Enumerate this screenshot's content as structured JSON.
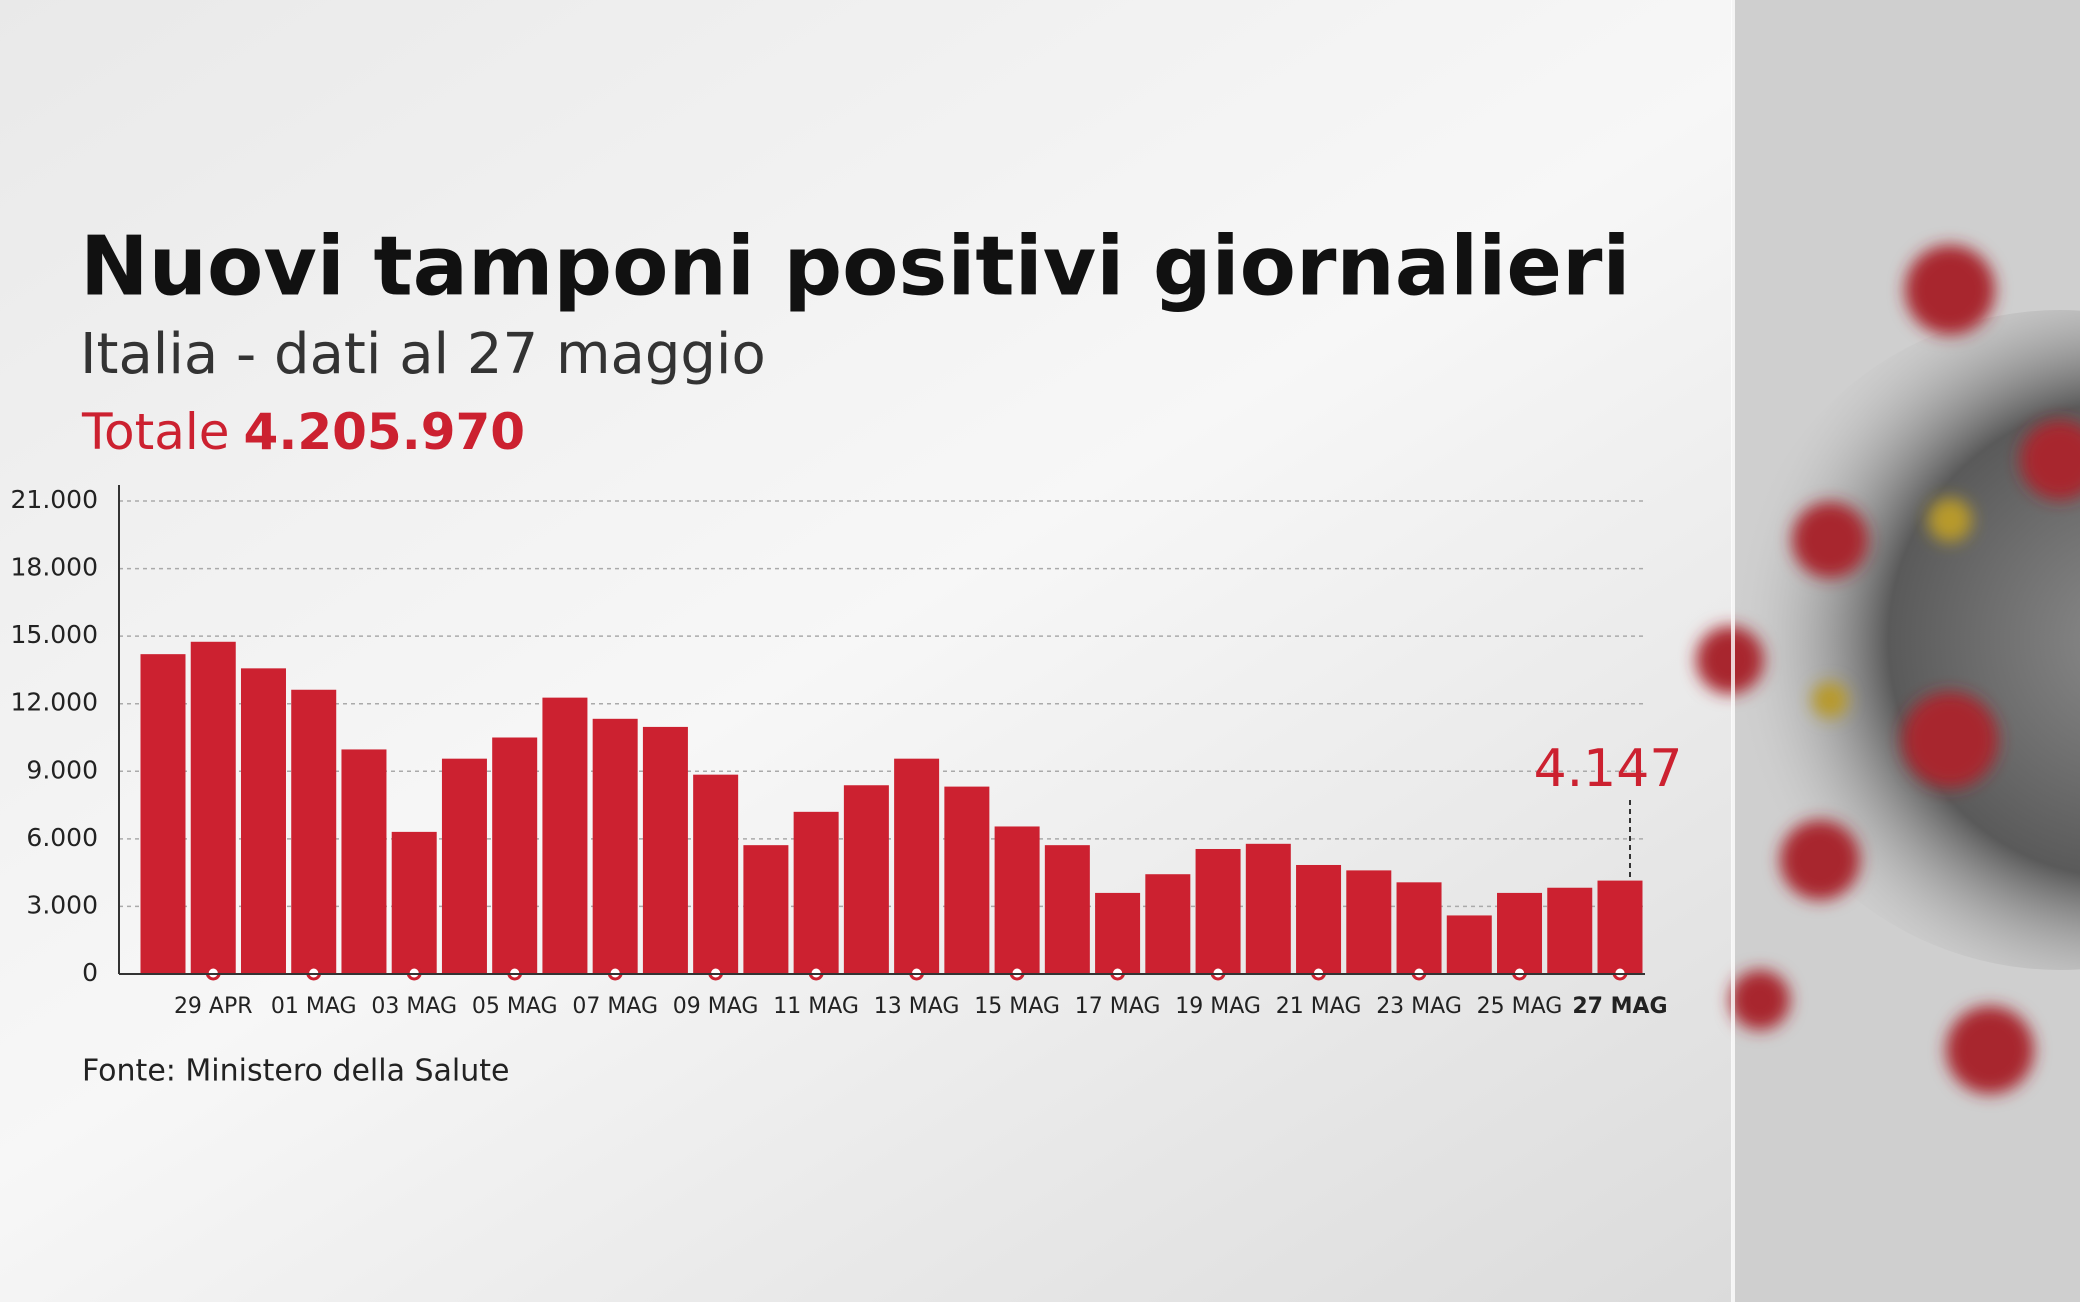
{
  "chart_data": {
    "type": "bar",
    "title": "Nuovi tamponi positivi giornalieri",
    "subtitle": "Italia - dati al 27 maggio",
    "total_label": "Totale",
    "total_value": "4.205.970",
    "source": "Fonte: Ministero della Salute",
    "categories": [
      null,
      "29 APR",
      null,
      "01 MAG",
      null,
      "03 MAG",
      null,
      "05 MAG",
      null,
      "07 MAG",
      null,
      "09 MAG",
      null,
      "11 MAG",
      null,
      "13 MAG",
      null,
      "15 MAG",
      null,
      "17 MAG",
      null,
      "19 MAG",
      null,
      "21 MAG",
      null,
      "23 MAG",
      null,
      "25 MAG",
      null,
      "27 MAG"
    ],
    "values": [
      14200,
      14750,
      13570,
      12620,
      9970,
      6310,
      9560,
      10500,
      12270,
      11330,
      10970,
      8850,
      5720,
      7200,
      8380,
      9560,
      8320,
      6550,
      5720,
      3600,
      4430,
      5550,
      5780,
      4840,
      4600,
      4070,
      2600,
      3600,
      3830,
      4147
    ],
    "value_labels": [
      null,
      null,
      null,
      null,
      null,
      null,
      null,
      null,
      null,
      null,
      null,
      null,
      null,
      null,
      null,
      null,
      null,
      null,
      null,
      null,
      null,
      null,
      null,
      null,
      null,
      null,
      null,
      null,
      null,
      "4.147"
    ],
    "color": "#cc2130",
    "ylim": [
      0,
      21000
    ],
    "yticks": [
      0,
      {
        "value": 3000,
        "label": "3.000"
      },
      {
        "value": 6000,
        "label": "6.000"
      },
      {
        "value": 9000,
        "label": "9.000"
      },
      {
        "value": 12000,
        "label": "12.000"
      },
      {
        "value": 15000,
        "label": "15.000"
      },
      {
        "value": 18000,
        "label": "18.000"
      },
      {
        "value": 21000,
        "label": "21.000"
      }
    ],
    "grid": true
  }
}
